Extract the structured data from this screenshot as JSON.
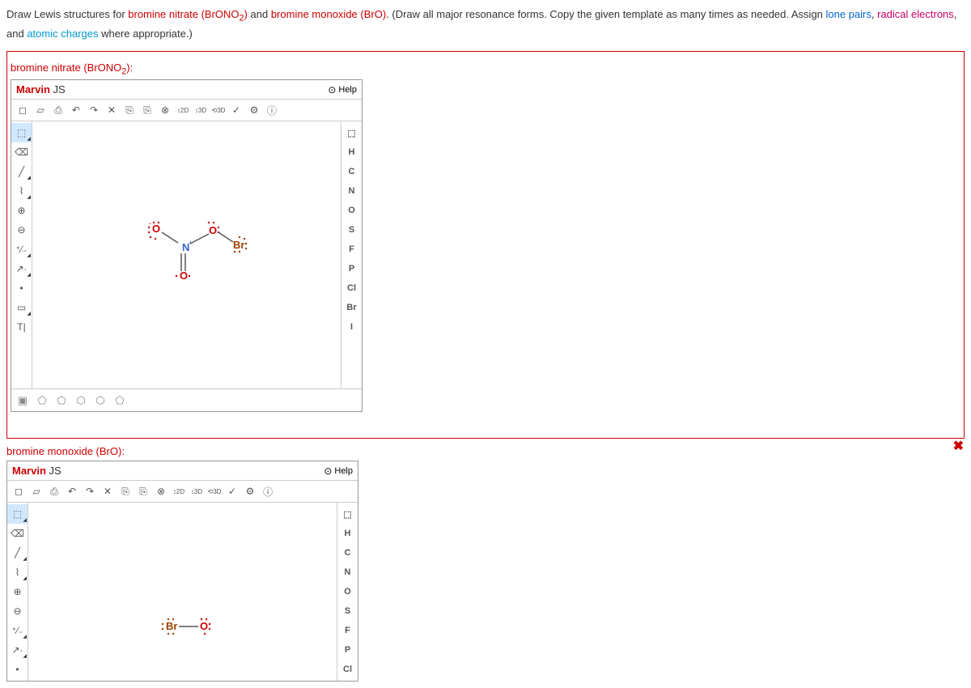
{
  "question": {
    "prefix": "Draw Lewis structures for ",
    "c1": "bromine nitrate (BrONO",
    "c1sub": "2",
    "c1end": ")",
    "and": " and ",
    "c2": "bromine monoxide (BrO)",
    "text2": ". (Draw all major resonance forms. Copy the given template as many times as needed. Assign ",
    "lone": "lone pairs",
    "comma1": ", ",
    "radical": "radical electrons",
    "comma2": ", and ",
    "charge": "atomic charges",
    "text3": " where appropriate.)"
  },
  "section1_label_a": "bromine nitrate (BrONO",
  "section1_label_sub": "2",
  "section1_label_b": "):",
  "section2_label": "bromine monoxide (BrO):",
  "marvin": {
    "title_a": "Marvin",
    "title_b": " JS",
    "help": "Help"
  },
  "top_icons": [
    "◻",
    "▱",
    "⎙",
    "↶",
    "↷",
    "✕",
    "⎘",
    "⎘",
    "⊗",
    "↕2D",
    "↕3D",
    "⟲3D",
    "✓",
    "⚙",
    "ⓘ"
  ],
  "left_tools": [
    {
      "glyph": "⬚",
      "class": "sel"
    },
    {
      "glyph": "⌫"
    },
    {
      "glyph": "╱"
    },
    {
      "glyph": "⌇"
    },
    {
      "glyph": "⊕"
    },
    {
      "glyph": "⊖"
    },
    {
      "glyph": "⁺⁄₋"
    },
    {
      "glyph": "↗·"
    },
    {
      "glyph": "•"
    },
    {
      "glyph": "▭"
    },
    {
      "glyph": "T|"
    }
  ],
  "right_elems": [
    "⬚",
    "H",
    "C",
    "N",
    "O",
    "S",
    "F",
    "P",
    "Cl",
    "Br",
    "I"
  ],
  "right_elems2": [
    "⬚",
    "H",
    "C",
    "N",
    "O",
    "S",
    "F",
    "P",
    "Cl"
  ],
  "bottom_icons": [
    "▣",
    "⬠",
    "⬠",
    "⬡",
    "⬡",
    "⬠"
  ],
  "mol1": {
    "n_color": "#36c",
    "o_color": "#c00",
    "br_color": "#a04000",
    "n_label": "N",
    "n_charge": "+",
    "o1_label": "O",
    "o1_charge": "-",
    "o2_label": "O",
    "o3_label": "O",
    "br_label": "Br"
  },
  "mol2": {
    "br_color": "#a04000",
    "o_color": "#c00",
    "br_label": "Br",
    "o_label": "O"
  }
}
